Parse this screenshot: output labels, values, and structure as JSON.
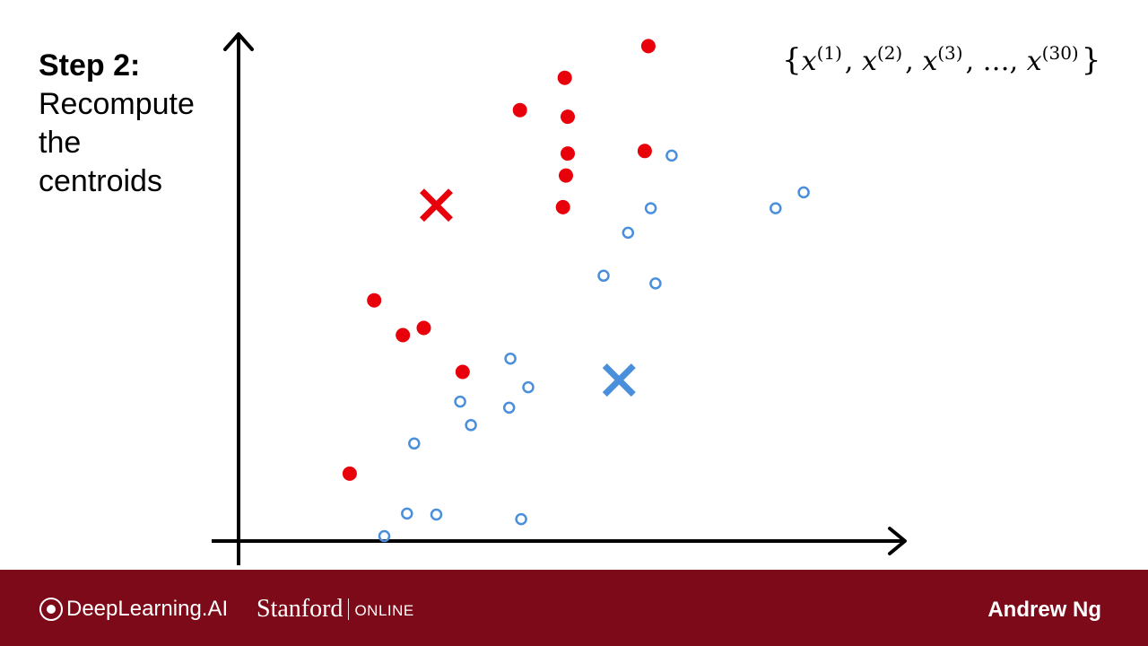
{
  "slide": {
    "step_title": "Step 2:",
    "step_lines": [
      "Recompute",
      "the",
      "centroids"
    ]
  },
  "chart_data": {
    "type": "scatter",
    "title": "",
    "annotation": {
      "open": "{",
      "terms": [
        {
          "base": "x",
          "sup": "(1)"
        },
        {
          "base": "x",
          "sup": "(2)"
        },
        {
          "base": "x",
          "sup": "(3)"
        },
        {
          "base": "…",
          "sup": ""
        },
        {
          "base": "x",
          "sup": "(30)"
        }
      ],
      "close": "}"
    },
    "xlim": [
      0,
      100
    ],
    "ylim": [
      0,
      100
    ],
    "grid": false,
    "colors": {
      "red": "#e8000b",
      "blue": "#4a8fdb"
    },
    "series": [
      {
        "color": "red",
        "marker": "filled-circle",
        "points": [
          [
            63.5,
            98.0
          ],
          [
            49.5,
            91.8
          ],
          [
            42.0,
            85.5
          ],
          [
            50.0,
            84.2
          ],
          [
            62.9,
            77.5
          ],
          [
            50.0,
            77.0
          ],
          [
            49.7,
            72.7
          ],
          [
            49.2,
            66.5
          ],
          [
            17.6,
            48.3
          ],
          [
            22.4,
            41.5
          ],
          [
            25.9,
            42.9
          ],
          [
            32.4,
            34.3
          ],
          [
            13.5,
            14.4
          ]
        ]
      },
      {
        "color": "blue",
        "marker": "open-circle",
        "points": [
          [
            67.4,
            76.6
          ],
          [
            63.9,
            66.3
          ],
          [
            84.8,
            66.3
          ],
          [
            89.5,
            69.4
          ],
          [
            60.1,
            61.5
          ],
          [
            56.0,
            53.1
          ],
          [
            64.7,
            51.6
          ],
          [
            40.4,
            36.9
          ],
          [
            43.4,
            31.3
          ],
          [
            32.0,
            28.5
          ],
          [
            40.2,
            27.3
          ],
          [
            33.8,
            23.9
          ],
          [
            24.3,
            20.3
          ],
          [
            23.1,
            6.6
          ],
          [
            28.0,
            6.4
          ],
          [
            42.2,
            5.5
          ],
          [
            19.3,
            2.2
          ]
        ]
      }
    ],
    "centroids": [
      {
        "color": "red",
        "marker": "x",
        "x": 28.0,
        "y": 66.9
      },
      {
        "color": "blue",
        "marker": "x",
        "x": 58.6,
        "y": 32.7
      }
    ]
  },
  "footer": {
    "logo_text": "DeepLearning.AI",
    "stanford": "Stanford",
    "online": "ONLINE",
    "presenter": "Andrew Ng"
  }
}
